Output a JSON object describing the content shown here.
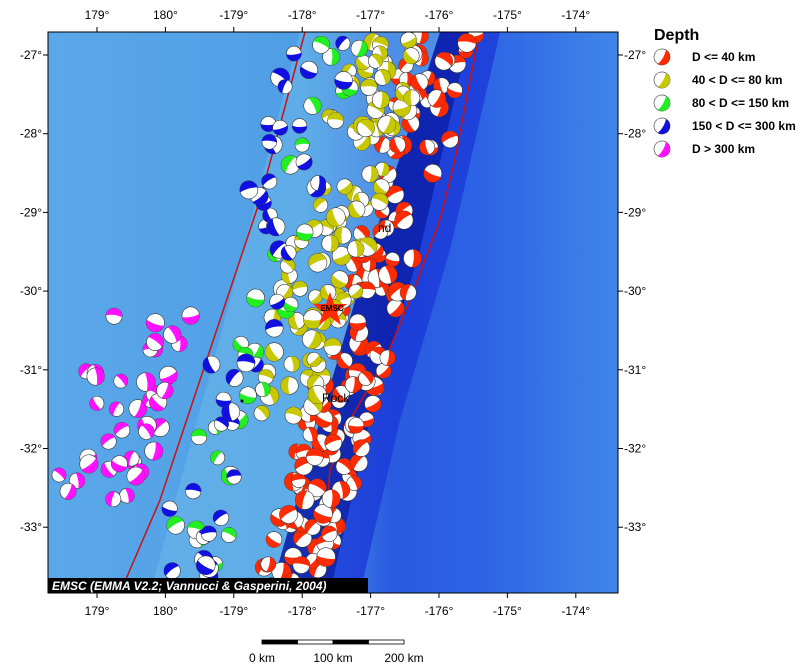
{
  "map": {
    "x_ticks": [
      "179°",
      "180°",
      "-179°",
      "-178°",
      "-177°",
      "-176°",
      "-175°",
      "-174°"
    ],
    "y_ticks": [
      "-27°",
      "-28°",
      "-29°",
      "-30°",
      "-31°",
      "-32°",
      "-33°"
    ],
    "legend": {
      "title": "Depth",
      "items": [
        {
          "label": "D <= 40 km",
          "color": "#ff2a00"
        },
        {
          "label": "40 < D <= 80 km",
          "color": "#c8c800"
        },
        {
          "label": "80 < D <= 150 km",
          "color": "#22ee22"
        },
        {
          "label": "150 < D <= 300 km",
          "color": "#1010e0"
        },
        {
          "label": "D > 300 km",
          "color": "#ff10ff"
        }
      ]
    },
    "credit": "EMSC (EMMA V2.2; Vannucci & Gasperini, 2004)",
    "marker_label": "EMSC",
    "place_labels": [
      "nd",
      "Rock"
    ],
    "scale_labels": [
      "0 km",
      "100 km",
      "200 km"
    ]
  }
}
